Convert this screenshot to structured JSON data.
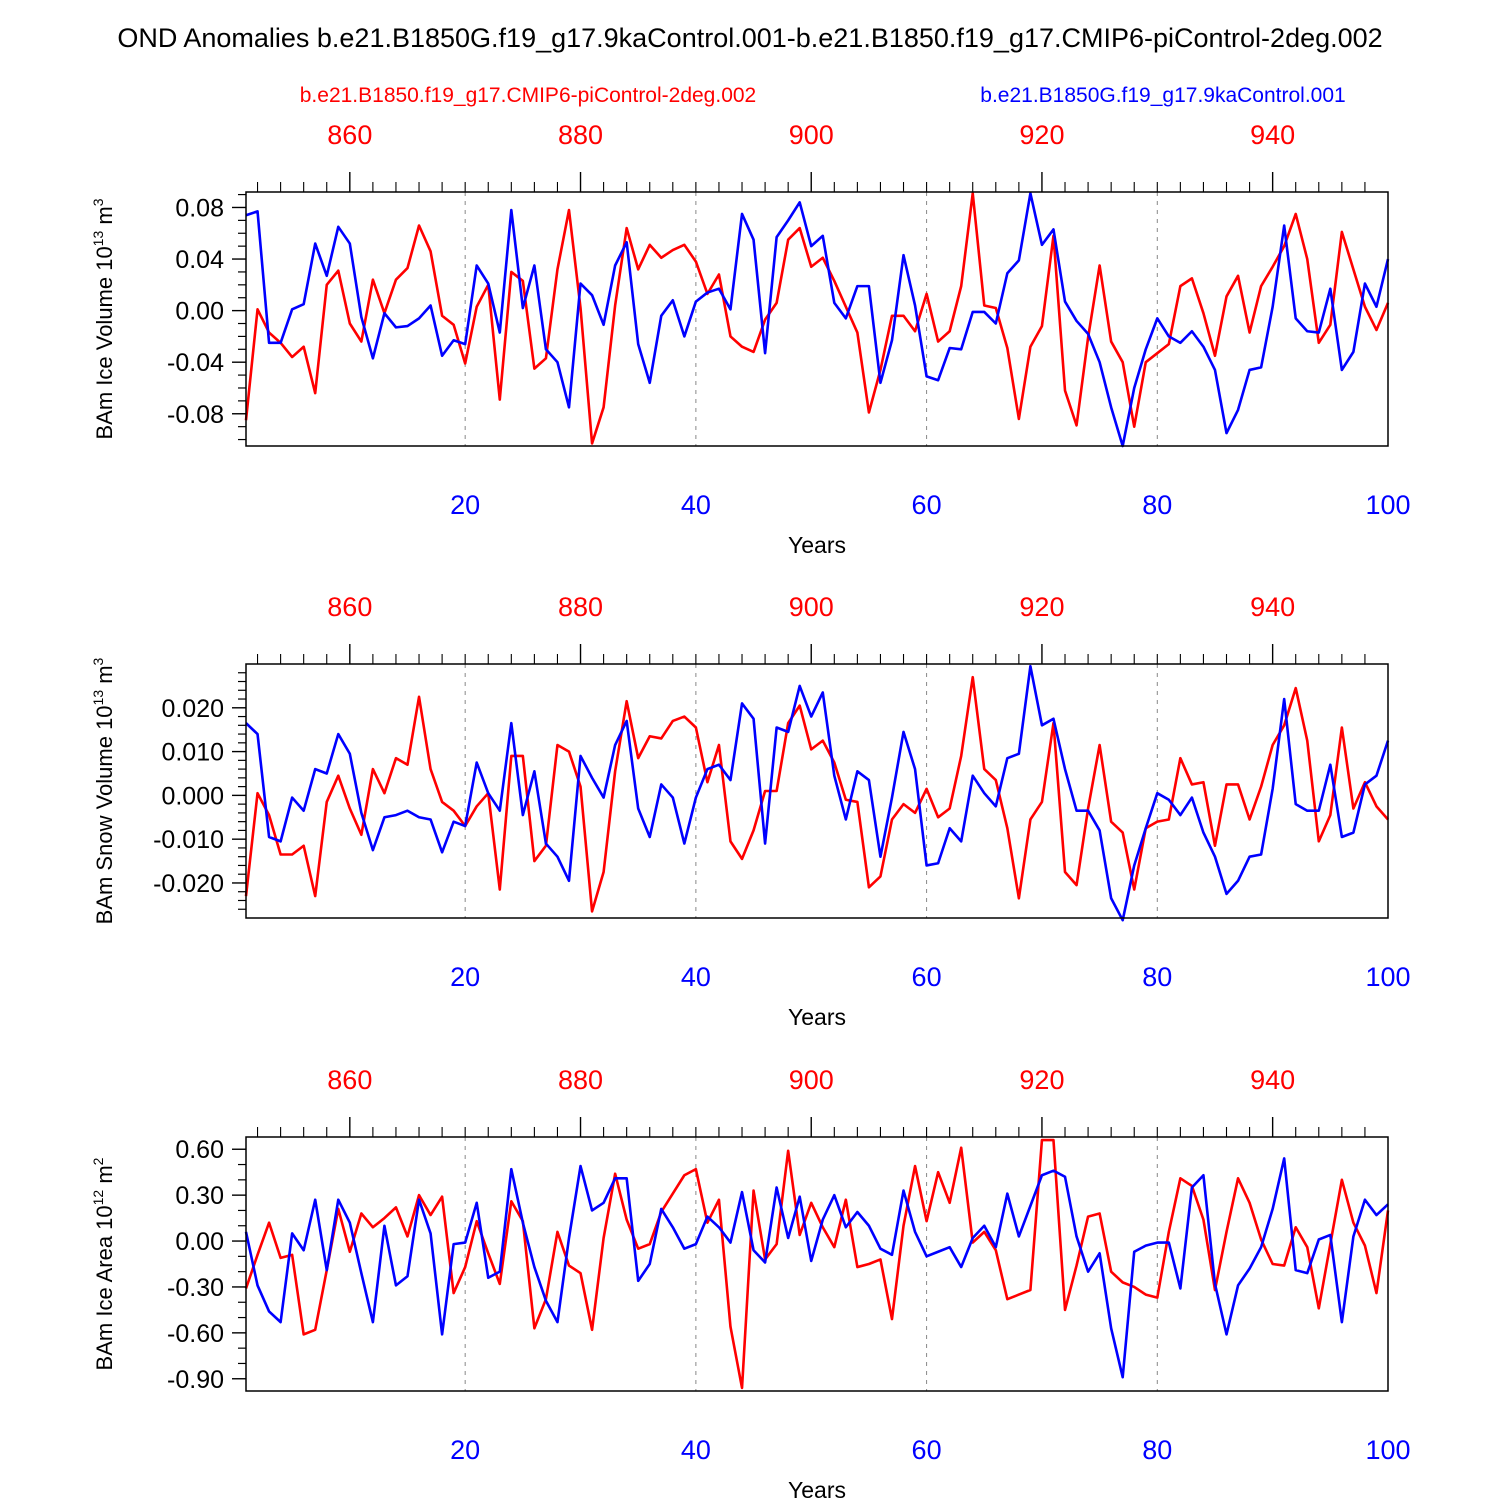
{
  "figure": {
    "title": "OND Anomalies b.e21.B1850G.f19_g17.9kaControl.001-b.e21.B1850.f19_g17.CMIP6-piControl-2deg.002",
    "legend_red": "b.e21.B1850.f19_g17.CMIP6-piControl-2deg.002",
    "legend_blue": "b.e21.B1850G.f19_g17.9kaControl.001",
    "colors": {
      "red": "#ff0000",
      "blue": "#0000ff",
      "axis": "#000000",
      "grid": "#888888"
    }
  },
  "chart_data": [
    {
      "type": "line",
      "title": "",
      "ylabel": "BAm Ice Volume 10",
      "ylabel_sup": "13",
      "ylabel_unit": " m",
      "ylabel_unit_sup": "3",
      "xlabel": "Years",
      "xlim": [
        1,
        100
      ],
      "top_xlim": [
        851,
        950
      ],
      "ylim": [
        -0.105,
        0.092
      ],
      "yticks": [
        -0.08,
        -0.04,
        0.0,
        0.04,
        0.08
      ],
      "ytick_labels": [
        "-0.08",
        "-0.04",
        "0.00",
        "0.04",
        "0.08"
      ],
      "yminor": [
        -0.1,
        -0.09,
        -0.07,
        -0.06,
        -0.05,
        -0.03,
        -0.02,
        -0.01,
        0.01,
        0.02,
        0.03,
        0.05,
        0.06,
        0.07,
        0.09
      ],
      "xticks": [
        20,
        40,
        60,
        80,
        100
      ],
      "xtick_labels": [
        "20",
        "40",
        "60",
        "80",
        "100"
      ],
      "top_xticks": [
        860,
        880,
        900,
        920,
        940
      ],
      "top_xtick_labels": [
        "860",
        "880",
        "900",
        "920",
        "940"
      ],
      "series": [
        {
          "name": "b.e21.B1850G.f19_g17.9kaControl.001",
          "color": "#0000ff",
          "values": [
            0.074,
            0.077,
            -0.025,
            -0.025,
            0.001,
            0.005,
            0.052,
            0.027,
            0.065,
            0.052,
            -0.005,
            -0.037,
            -0.002,
            -0.013,
            -0.012,
            -0.006,
            0.004,
            -0.035,
            -0.023,
            -0.026,
            0.035,
            0.021,
            -0.017,
            0.078,
            0.002,
            0.035,
            -0.03,
            -0.04,
            -0.075,
            0.021,
            0.012,
            -0.011,
            0.035,
            0.053,
            -0.026,
            -0.056,
            -0.004,
            0.008,
            -0.02,
            0.007,
            0.014,
            0.017,
            0.001,
            0.075,
            0.055,
            -0.033,
            0.057,
            0.07,
            0.084,
            0.05,
            0.058,
            0.006,
            -0.006,
            0.019,
            0.019,
            -0.056,
            -0.023,
            0.043,
            0.004,
            -0.051,
            -0.054,
            -0.029,
            -0.03,
            -0.001,
            -0.001,
            -0.01,
            0.029,
            0.039,
            0.091,
            0.051,
            0.063,
            0.007,
            -0.008,
            -0.018,
            -0.04,
            -0.075,
            -0.105,
            -0.06,
            -0.03,
            -0.006,
            -0.02,
            -0.025,
            -0.016,
            -0.028,
            -0.046,
            -0.095,
            -0.077,
            -0.046,
            -0.044,
            0.003,
            0.066,
            -0.006,
            -0.016,
            -0.017,
            0.017,
            -0.046,
            -0.032,
            0.021,
            0.003,
            0.04
          ]
        },
        {
          "name": "b.e21.B1850.f19_g17.CMIP6-piControl-2deg.002",
          "color": "#ff0000",
          "values": [
            -0.085,
            0.001,
            -0.017,
            -0.025,
            -0.036,
            -0.028,
            -0.064,
            0.02,
            0.031,
            -0.01,
            -0.024,
            0.024,
            -0.002,
            0.024,
            0.033,
            0.066,
            0.046,
            -0.004,
            -0.011,
            -0.041,
            0.003,
            0.02,
            -0.069,
            0.03,
            0.023,
            -0.045,
            -0.037,
            0.032,
            0.078,
            0.002,
            -0.103,
            -0.075,
            0.004,
            0.064,
            0.032,
            0.051,
            0.041,
            0.047,
            0.051,
            0.038,
            0.013,
            0.028,
            -0.02,
            -0.028,
            -0.032,
            -0.007,
            0.006,
            0.055,
            0.064,
            0.034,
            0.041,
            0.023,
            0.003,
            -0.017,
            -0.079,
            -0.046,
            -0.004,
            -0.004,
            -0.016,
            0.013,
            -0.024,
            -0.016,
            0.019,
            0.091,
            0.004,
            0.002,
            -0.029,
            -0.084,
            -0.028,
            -0.012,
            0.058,
            -0.062,
            -0.089,
            -0.021,
            0.035,
            -0.024,
            -0.04,
            -0.09,
            -0.04,
            -0.033,
            -0.026,
            0.019,
            0.025,
            -0.002,
            -0.035,
            0.011,
            0.027,
            -0.017,
            0.019,
            0.034,
            0.05,
            0.075,
            0.04,
            -0.025,
            -0.011,
            0.061,
            0.032,
            0.003,
            -0.015,
            0.006
          ]
        }
      ]
    },
    {
      "type": "line",
      "title": "",
      "ylabel": "BAm Snow Volume 10",
      "ylabel_sup": "13",
      "ylabel_unit": " m",
      "ylabel_unit_sup": "3",
      "xlabel": "Years",
      "xlim": [
        1,
        100
      ],
      "top_xlim": [
        851,
        950
      ],
      "ylim": [
        -0.028,
        0.03
      ],
      "yticks": [
        -0.02,
        -0.01,
        0.0,
        0.01,
        0.02
      ],
      "ytick_labels": [
        "-0.020",
        "-0.010",
        "0.000",
        "0.010",
        "0.020"
      ],
      "yminor": [
        -0.026,
        -0.024,
        -0.022,
        -0.018,
        -0.016,
        -0.014,
        -0.012,
        -0.008,
        -0.006,
        -0.004,
        -0.002,
        0.002,
        0.004,
        0.006,
        0.008,
        0.012,
        0.014,
        0.016,
        0.018,
        0.022,
        0.024,
        0.026,
        0.028
      ],
      "xticks": [
        20,
        40,
        60,
        80,
        100
      ],
      "xtick_labels": [
        "20",
        "40",
        "60",
        "80",
        "100"
      ],
      "top_xticks": [
        860,
        880,
        900,
        920,
        940
      ],
      "top_xtick_labels": [
        "860",
        "880",
        "900",
        "920",
        "940"
      ],
      "series": [
        {
          "name": "b.e21.B1850G.f19_g17.9kaControl.001",
          "color": "#0000ff",
          "values": [
            0.0165,
            0.014,
            -0.0095,
            -0.0105,
            -0.0005,
            -0.0035,
            0.006,
            0.005,
            0.014,
            0.0095,
            -0.004,
            -0.0125,
            -0.005,
            -0.0045,
            -0.0035,
            -0.005,
            -0.0055,
            -0.013,
            -0.006,
            -0.007,
            0.0075,
            0.0005,
            -0.0035,
            0.0165,
            -0.0045,
            0.0055,
            -0.011,
            -0.014,
            -0.0195,
            0.009,
            0.004,
            -0.0005,
            0.0115,
            0.017,
            -0.003,
            -0.0095,
            0.0025,
            -0.0005,
            -0.011,
            -0.0005,
            0.006,
            0.007,
            0.0035,
            0.021,
            0.0175,
            -0.011,
            0.0155,
            0.0145,
            0.025,
            0.018,
            0.0235,
            0.0045,
            -0.0055,
            0.0055,
            0.0035,
            -0.014,
            -0.0005,
            0.0145,
            0.006,
            -0.016,
            -0.0155,
            -0.0075,
            -0.0105,
            0.0045,
            0.0005,
            -0.0025,
            0.0085,
            0.0095,
            0.0295,
            0.016,
            0.0175,
            0.006,
            -0.0035,
            -0.0035,
            -0.008,
            -0.0235,
            -0.0285,
            -0.016,
            -0.0075,
            0.0005,
            -0.001,
            -0.0045,
            -0.0005,
            -0.0085,
            -0.014,
            -0.0225,
            -0.0195,
            -0.014,
            -0.0135,
            0.0015,
            0.022,
            -0.002,
            -0.0035,
            -0.0035,
            0.007,
            -0.0095,
            -0.0085,
            0.0025,
            0.0045,
            0.0125
          ]
        },
        {
          "name": "b.e21.B1850.f19_g17.CMIP6-piControl-2deg.002",
          "color": "#ff0000",
          "values": [
            -0.023,
            0.0005,
            -0.0045,
            -0.0135,
            -0.0135,
            -0.0115,
            -0.023,
            -0.0015,
            0.0045,
            -0.003,
            -0.009,
            0.006,
            0.0005,
            0.0085,
            0.007,
            0.0225,
            0.006,
            -0.0015,
            -0.0035,
            -0.007,
            -0.0025,
            0.0005,
            -0.0215,
            0.009,
            0.009,
            -0.015,
            -0.0115,
            0.0115,
            0.01,
            0.002,
            -0.0265,
            -0.0175,
            0.0055,
            0.0215,
            0.0085,
            0.0135,
            0.013,
            0.017,
            0.018,
            0.0155,
            0.003,
            0.0115,
            -0.0105,
            -0.0145,
            -0.008,
            0.001,
            0.001,
            0.0165,
            0.0205,
            0.0105,
            0.0125,
            0.0075,
            -0.001,
            -0.0015,
            -0.021,
            -0.0185,
            -0.0055,
            -0.002,
            -0.004,
            0.0015,
            -0.005,
            -0.003,
            0.009,
            0.027,
            0.006,
            0.0035,
            -0.0075,
            -0.0235,
            -0.0055,
            -0.0015,
            0.0165,
            -0.0175,
            -0.0205,
            -0.003,
            0.0115,
            -0.006,
            -0.0085,
            -0.0215,
            -0.0075,
            -0.006,
            -0.0055,
            0.0085,
            0.0025,
            0.003,
            -0.0115,
            0.0025,
            0.0025,
            -0.0055,
            0.002,
            0.0115,
            0.016,
            0.0245,
            0.0125,
            -0.0105,
            -0.0045,
            0.0155,
            -0.003,
            0.003,
            -0.0025,
            -0.0055
          ]
        }
      ]
    },
    {
      "type": "line",
      "title": "",
      "ylabel": "BAm Ice Area 10",
      "ylabel_sup": "12",
      "ylabel_unit": " m",
      "ylabel_unit_sup": "2",
      "xlabel": "Years",
      "xlim": [
        1,
        100
      ],
      "top_xlim": [
        851,
        950
      ],
      "ylim": [
        -0.98,
        0.68
      ],
      "yticks": [
        -0.9,
        -0.6,
        -0.3,
        0.0,
        0.3,
        0.6
      ],
      "ytick_labels": [
        "-0.90",
        "-0.60",
        "-0.30",
        "0.00",
        "0.30",
        "0.60"
      ],
      "yminor": [
        -0.8,
        -0.7,
        -0.5,
        -0.4,
        -0.2,
        -0.1,
        0.1,
        0.2,
        0.4,
        0.5
      ],
      "xticks": [
        20,
        40,
        60,
        80,
        100
      ],
      "xtick_labels": [
        "20",
        "40",
        "60",
        "80",
        "100"
      ],
      "top_xticks": [
        860,
        880,
        900,
        920,
        940
      ],
      "top_xtick_labels": [
        "860",
        "880",
        "900",
        "920",
        "940"
      ],
      "series": [
        {
          "name": "b.e21.B1850G.f19_g17.9kaControl.001",
          "color": "#0000ff",
          "values": [
            0.06,
            -0.29,
            -0.46,
            -0.53,
            0.05,
            -0.06,
            0.27,
            -0.19,
            0.27,
            0.12,
            -0.21,
            -0.53,
            0.1,
            -0.29,
            -0.23,
            0.27,
            0.05,
            -0.61,
            -0.02,
            -0.01,
            0.25,
            -0.24,
            -0.2,
            0.47,
            0.12,
            -0.17,
            -0.39,
            -0.53,
            0.02,
            0.49,
            0.2,
            0.25,
            0.41,
            0.41,
            -0.26,
            -0.15,
            0.21,
            0.09,
            -0.05,
            -0.02,
            0.16,
            0.09,
            -0.01,
            0.32,
            -0.06,
            -0.14,
            0.35,
            0.02,
            0.29,
            -0.13,
            0.14,
            0.3,
            0.09,
            0.19,
            0.1,
            -0.05,
            -0.09,
            0.33,
            0.06,
            -0.1,
            -0.07,
            -0.04,
            -0.17,
            0.02,
            0.1,
            -0.04,
            0.31,
            0.03,
            0.23,
            0.43,
            0.46,
            0.42,
            0.03,
            -0.2,
            -0.08,
            -0.57,
            -0.89,
            -0.07,
            -0.03,
            -0.01,
            -0.01,
            -0.31,
            0.35,
            0.43,
            -0.28,
            -0.61,
            -0.29,
            -0.18,
            -0.04,
            0.21,
            0.54,
            -0.19,
            -0.21,
            0.01,
            0.04,
            -0.53,
            0.03,
            0.27,
            0.17,
            0.24
          ]
        },
        {
          "name": "b.e21.B1850.f19_g17.CMIP6-piControl-2deg.002",
          "color": "#ff0000",
          "values": [
            -0.31,
            -0.09,
            0.12,
            -0.11,
            -0.09,
            -0.61,
            -0.58,
            -0.19,
            0.21,
            -0.07,
            0.18,
            0.09,
            0.15,
            0.22,
            0.03,
            0.3,
            0.17,
            0.29,
            -0.34,
            -0.17,
            0.13,
            -0.08,
            -0.28,
            0.26,
            0.13,
            -0.57,
            -0.38,
            0.06,
            -0.16,
            -0.21,
            -0.58,
            0.02,
            0.44,
            0.14,
            -0.05,
            -0.02,
            0.19,
            0.31,
            0.43,
            0.47,
            0.12,
            0.27,
            -0.56,
            -0.96,
            0.33,
            -0.12,
            -0.02,
            0.59,
            0.04,
            0.25,
            0.09,
            -0.04,
            0.27,
            -0.17,
            -0.15,
            -0.12,
            -0.51,
            0.1,
            0.49,
            0.13,
            0.45,
            0.25,
            0.61,
            -0.01,
            0.06,
            -0.06,
            -0.38,
            -0.35,
            -0.32,
            0.66,
            0.66,
            -0.45,
            -0.16,
            0.16,
            0.18,
            -0.2,
            -0.27,
            -0.3,
            -0.35,
            -0.37,
            0.06,
            0.41,
            0.36,
            0.14,
            -0.32,
            0.06,
            0.41,
            0.25,
            0.01,
            -0.15,
            -0.16,
            0.09,
            -0.04,
            -0.44,
            -0.02,
            0.4,
            0.12,
            -0.03,
            -0.34,
            0.2
          ]
        }
      ]
    }
  ]
}
